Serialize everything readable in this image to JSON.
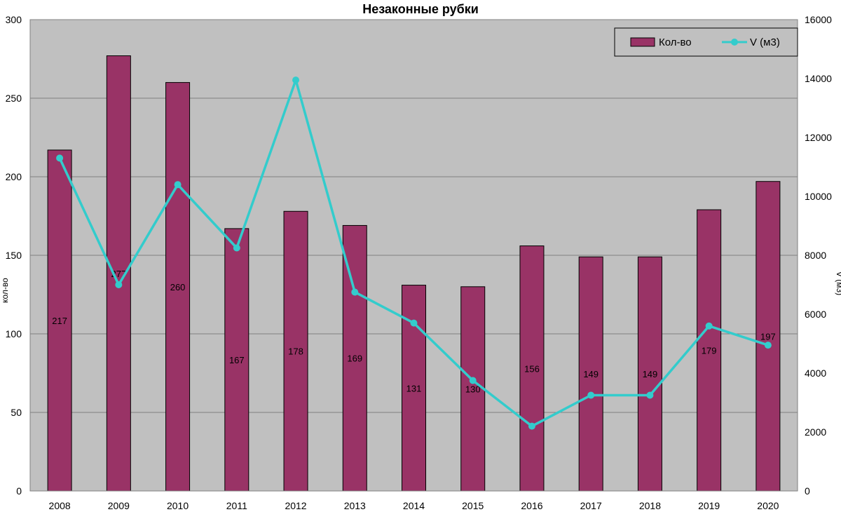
{
  "chart_data": {
    "type": "bar+line",
    "title": "Незаконные рубки",
    "categories": [
      "2008",
      "2009",
      "2010",
      "2011",
      "2012",
      "2013",
      "2014",
      "2015",
      "2016",
      "2017",
      "2018",
      "2019",
      "2020"
    ],
    "series": [
      {
        "name": "Кол-во",
        "type": "bar",
        "axis": "left",
        "color": "#993366",
        "values": [
          217,
          277,
          260,
          167,
          178,
          169,
          131,
          130,
          156,
          149,
          149,
          179,
          197
        ],
        "data_labels": [
          "217",
          "277",
          "260",
          "167",
          "178",
          "169",
          "131",
          "130",
          "156",
          "149",
          "149",
          "179",
          "197"
        ]
      },
      {
        "name": "V (м3)",
        "type": "line",
        "axis": "right",
        "color": "#33CCCC",
        "marker": "circle",
        "values": [
          11300,
          7000,
          10400,
          8250,
          13950,
          6750,
          5700,
          3750,
          2200,
          3250,
          3250,
          5600,
          4950
        ]
      }
    ],
    "y_left": {
      "label": "кол-во",
      "ylim": [
        0,
        300
      ],
      "ticks": [
        "0",
        "50",
        "100",
        "150",
        "200",
        "250",
        "300"
      ]
    },
    "y_right": {
      "label": "V (м3)",
      "ylim": [
        0,
        16000
      ],
      "ticks": [
        "0",
        "2000",
        "4000",
        "6000",
        "8000",
        "10000",
        "12000",
        "14000",
        "16000"
      ]
    },
    "grid": true,
    "legend": "top-right",
    "plot_background": "#C0C0C0"
  }
}
